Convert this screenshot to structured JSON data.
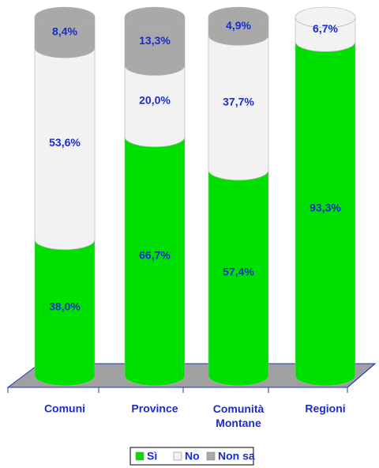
{
  "chart_data": {
    "type": "cylinder-stacked",
    "categories": [
      "Comuni",
      "Province",
      "Comunità\nMontane",
      "Regioni"
    ],
    "ylim": [
      0,
      100
    ],
    "series": [
      {
        "name": "Sì",
        "color": "#00e000",
        "values": [
          38.0,
          66.7,
          57.4,
          93.3
        ],
        "value_labels": [
          "38,0%",
          "66,7%",
          "57,4%",
          "93,3%"
        ]
      },
      {
        "name": "No",
        "color": "#f2f2f2",
        "values": [
          53.6,
          20.0,
          37.7,
          6.7
        ],
        "value_labels": [
          "53,6%",
          "20,0%",
          "37,7%",
          "6,7%"
        ]
      },
      {
        "name": "Non sa",
        "color": "#a9a9a9",
        "values": [
          8.4,
          13.3,
          4.9,
          null
        ],
        "value_labels": [
          "8,4%",
          "13,3%",
          "4,9%",
          null
        ]
      }
    ],
    "legend": "bottom"
  }
}
